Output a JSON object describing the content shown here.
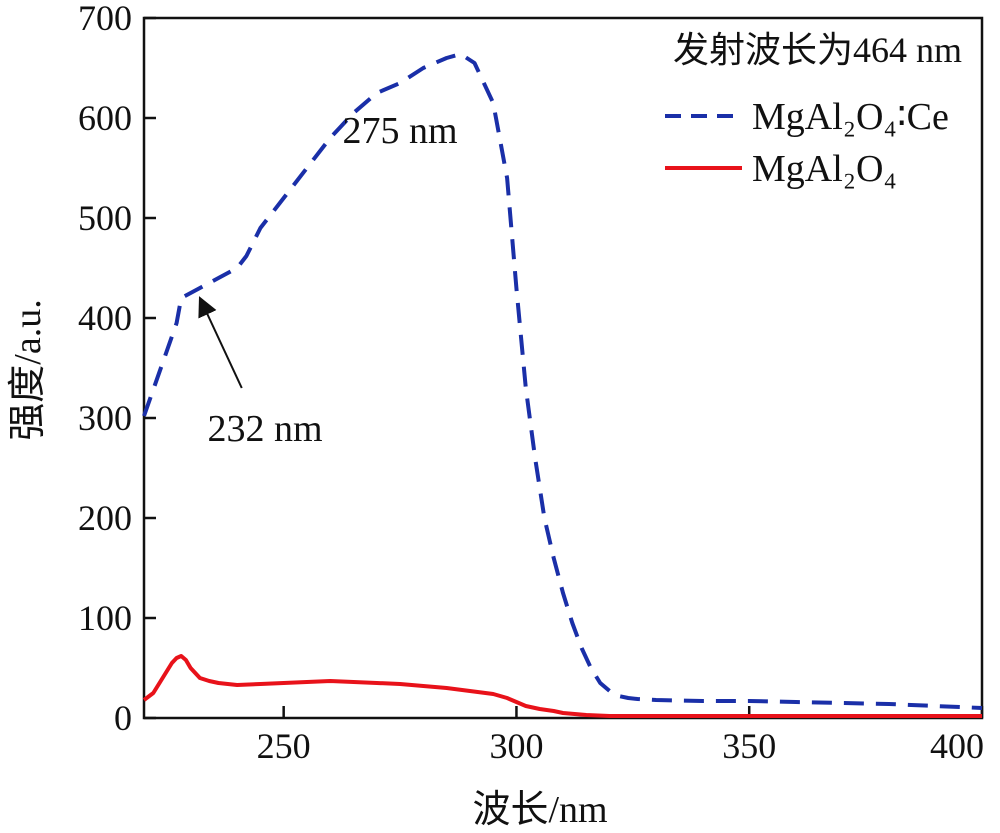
{
  "chart_data": {
    "type": "line",
    "title": "",
    "xlabel": "波长/nm",
    "ylabel": "强度/a.u.",
    "xlim": [
      220,
      400
    ],
    "ylim": [
      0,
      700
    ],
    "xticks": [
      250,
      300,
      350,
      400
    ],
    "yticks": [
      0,
      100,
      200,
      300,
      400,
      500,
      600,
      700
    ],
    "xtick_labels": [
      "250",
      "300",
      "350",
      "400"
    ],
    "ytick_labels": [
      "0",
      "100",
      "200",
      "300",
      "400",
      "500",
      "600",
      "700"
    ],
    "legend": {
      "title": "发射波长为464 nm",
      "placement": "top-right"
    },
    "series": [
      {
        "name": "MgAl₂O₄∶Ce",
        "color": "#1a2fa8",
        "style": "dashed",
        "x": [
          220,
          224,
          227,
          228,
          230,
          232,
          236,
          240,
          242,
          245,
          250,
          255,
          260,
          265,
          270,
          275,
          280,
          285,
          288,
          291,
          295,
          298,
          300,
          302,
          304,
          306,
          308,
          310,
          312,
          314,
          316,
          318,
          320,
          322,
          324,
          326,
          330,
          340,
          350,
          360,
          370,
          380,
          390,
          400
        ],
        "values": [
          302,
          355,
          395,
          420,
          425,
          430,
          440,
          450,
          462,
          490,
          520,
          550,
          580,
          605,
          625,
          635,
          650,
          660,
          664,
          655,
          615,
          540,
          430,
          330,
          260,
          200,
          160,
          125,
          95,
          70,
          50,
          35,
          27,
          22,
          20,
          19,
          18,
          17,
          17,
          16,
          15,
          14,
          12,
          10
        ]
      },
      {
        "name": "MgAl₂O₄",
        "color": "#e8121a",
        "style": "solid",
        "x": [
          220,
          222,
          224,
          226,
          227,
          228,
          229,
          230,
          232,
          234,
          236,
          238,
          240,
          245,
          250,
          255,
          260,
          265,
          270,
          275,
          280,
          285,
          290,
          295,
          298,
          300,
          302,
          305,
          308,
          310,
          315,
          320,
          330,
          340,
          350,
          360,
          370,
          380,
          390,
          400
        ],
        "values": [
          18,
          25,
          40,
          55,
          60,
          62,
          58,
          50,
          40,
          37,
          35,
          34,
          33,
          34,
          35,
          36,
          37,
          36,
          35,
          34,
          32,
          30,
          27,
          24,
          20,
          16,
          12,
          9,
          7,
          5,
          3,
          2,
          2,
          2,
          2,
          2,
          2,
          2,
          2,
          2
        ]
      }
    ],
    "annotations": [
      {
        "text": "275 nm",
        "x": 275,
        "y": 575,
        "arrow": false
      },
      {
        "text": "232 nm",
        "x": 246,
        "y": 277,
        "arrow": true,
        "arrow_from": [
          241,
          330
        ],
        "arrow_to": [
          232,
          420
        ]
      }
    ]
  }
}
